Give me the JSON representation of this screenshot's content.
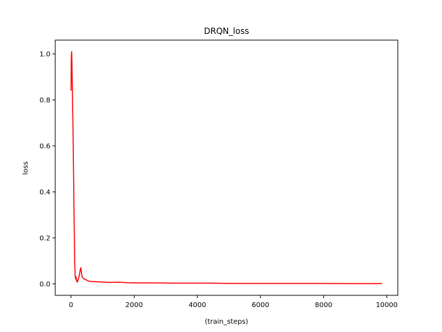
{
  "chart_data": {
    "type": "line",
    "title": "DRQN_loss",
    "xlabel": "(train_steps)",
    "ylabel": "loss",
    "xlim": [
      -500,
      10350
    ],
    "ylim": [
      -0.05,
      1.06
    ],
    "xticks": [
      0,
      2000,
      4000,
      6000,
      8000,
      10000
    ],
    "yticks": [
      0.0,
      0.2,
      0.4,
      0.6,
      0.8,
      1.0
    ],
    "xtick_labels": [
      "0",
      "2000",
      "4000",
      "6000",
      "8000",
      "10000"
    ],
    "ytick_labels": [
      "0.0",
      "0.2",
      "0.4",
      "0.6",
      "0.8",
      "1.0"
    ],
    "grid": false,
    "legend": "none",
    "series": [
      {
        "color": "#ff0000",
        "x": [
          0,
          10,
          20,
          30,
          40,
          50,
          60,
          70,
          80,
          90,
          100,
          110,
          120,
          130,
          140,
          150,
          160,
          180,
          200,
          230,
          260,
          290,
          310,
          330,
          350,
          380,
          420,
          470,
          550,
          650,
          800,
          1000,
          1200,
          1500,
          1800,
          2200,
          2700,
          3200,
          3800,
          4400,
          5000,
          6000,
          7000,
          8000,
          9000,
          9850
        ],
        "values": [
          0.84,
          0.99,
          1.01,
          0.95,
          0.86,
          0.78,
          0.7,
          0.6,
          0.48,
          0.36,
          0.25,
          0.15,
          0.08,
          0.04,
          0.025,
          0.02,
          0.03,
          0.01,
          0.008,
          0.02,
          0.035,
          0.06,
          0.07,
          0.05,
          0.03,
          0.025,
          0.02,
          0.018,
          0.012,
          0.01,
          0.009,
          0.008,
          0.006,
          0.007,
          0.005,
          0.004,
          0.004,
          0.003,
          0.003,
          0.003,
          0.002,
          0.002,
          0.002,
          0.002,
          0.001,
          0.001
        ]
      }
    ]
  }
}
